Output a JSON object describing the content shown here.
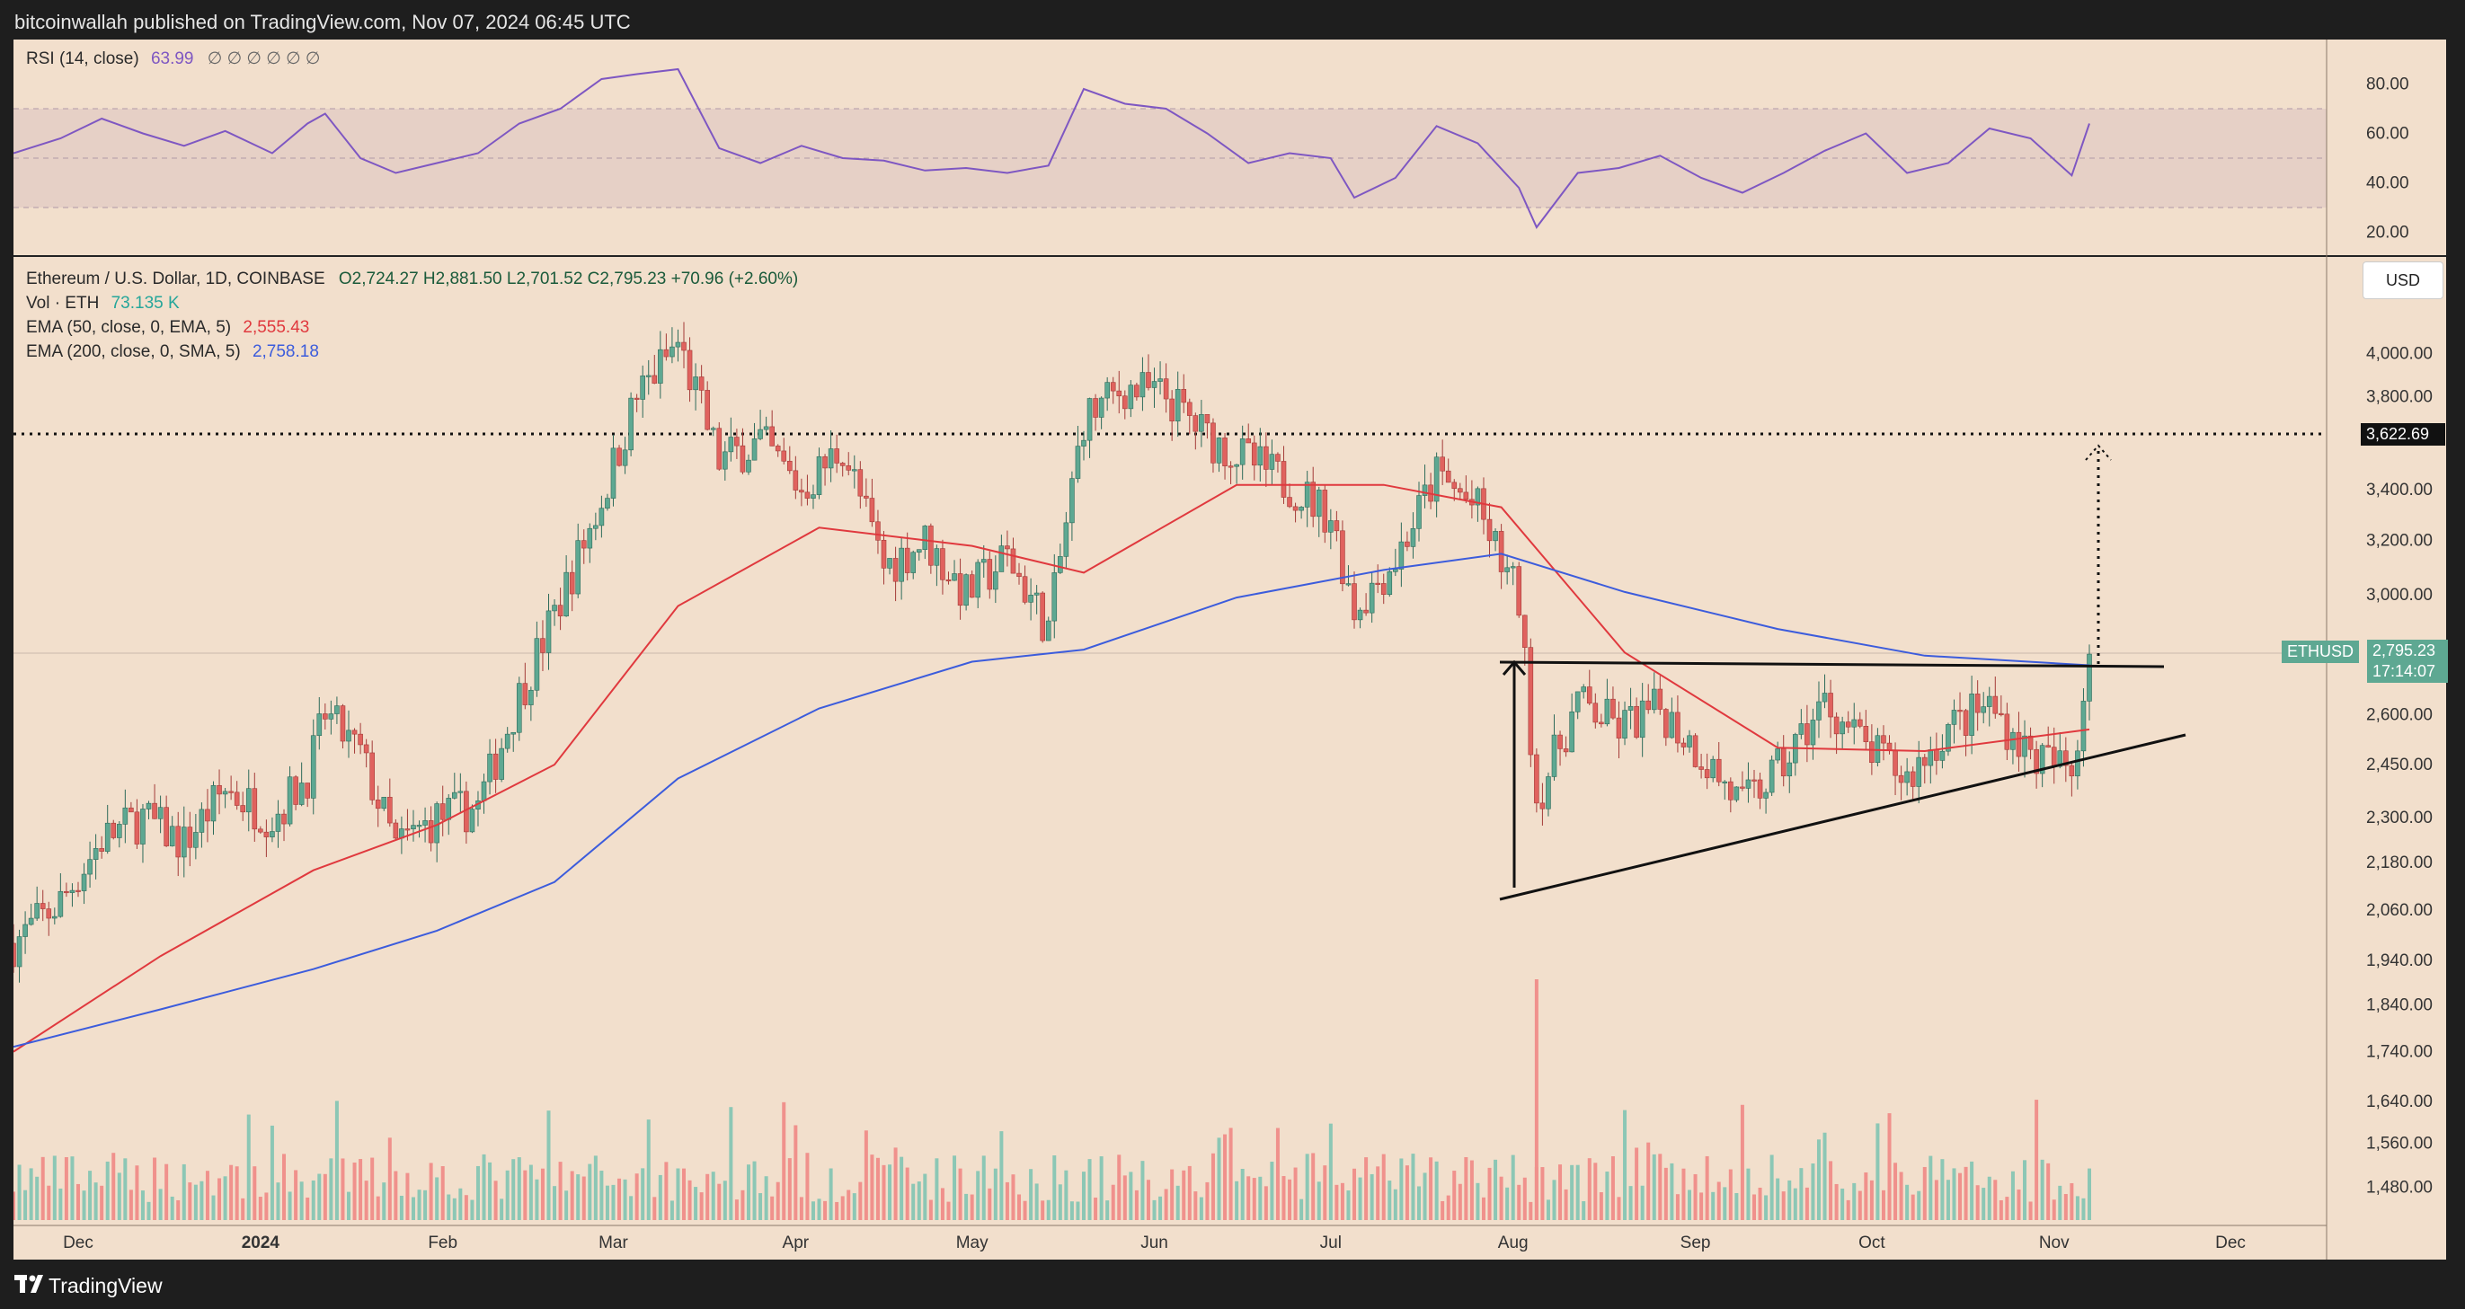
{
  "header": {
    "published_line": "bitcoinwallah published on TradingView.com, Nov 07, 2024 06:45 UTC"
  },
  "footer": {
    "brand": "TradingView"
  },
  "rsi_legend": {
    "label": "RSI (14, close)",
    "value": "63.99",
    "extras": "∅ ∅ ∅ ∅ ∅ ∅"
  },
  "main_legend": {
    "symbol": "Ethereum / U.S. Dollar, 1D, COINBASE",
    "ohlc": "O2,724.27  H2,881.50  L2,701.52  C2,795.23  +70.96 (+2.60%)",
    "vol_label": "Vol · ETH",
    "vol_value": "73.135 K",
    "ema50_label": "EMA (50, close, 0, EMA, 5)",
    "ema50_value": "2,555.43",
    "ema200_label": "EMA (200, close, 0, SMA, 5)",
    "ema200_value": "2,758.18"
  },
  "price_axis": {
    "currency": "USD",
    "symbol_tag": "ETHUSD",
    "price_tag": "2,795.23",
    "countdown_tag": "17:14:07",
    "target_tag": "3,622.69"
  },
  "colors": {
    "up": "#5ea892",
    "down": "#e0625e",
    "ema50": "#e0393e",
    "ema200": "#3c5cdc",
    "rsi": "#7e57c2",
    "background": "#f2dfcc"
  },
  "chart_data": [
    {
      "type": "line",
      "title": "RSI (14, close)",
      "y_ticks": [
        "80.00",
        "60.00",
        "40.00",
        "20.00"
      ],
      "bands": {
        "upper": 70,
        "middle": 50,
        "lower": 30
      },
      "series": [
        {
          "name": "RSI (14, close)",
          "x": [
            "2023-11-20",
            "2023-11-28",
            "2023-12-05",
            "2023-12-12",
            "2023-12-19",
            "2023-12-26",
            "2024-01-03",
            "2024-01-09",
            "2024-01-12",
            "2024-01-18",
            "2024-01-24",
            "2024-01-31",
            "2024-02-07",
            "2024-02-14",
            "2024-02-21",
            "2024-02-28",
            "2024-03-05",
            "2024-03-12",
            "2024-03-19",
            "2024-03-26",
            "2024-04-02",
            "2024-04-09",
            "2024-04-16",
            "2024-04-23",
            "2024-04-30",
            "2024-05-07",
            "2024-05-14",
            "2024-05-20",
            "2024-05-27",
            "2024-06-03",
            "2024-06-10",
            "2024-06-17",
            "2024-06-24",
            "2024-07-01",
            "2024-07-05",
            "2024-07-12",
            "2024-07-19",
            "2024-07-26",
            "2024-08-02",
            "2024-08-05",
            "2024-08-12",
            "2024-08-19",
            "2024-08-26",
            "2024-09-02",
            "2024-09-09",
            "2024-09-16",
            "2024-09-23",
            "2024-09-30",
            "2024-10-07",
            "2024-10-14",
            "2024-10-21",
            "2024-10-28",
            "2024-11-04",
            "2024-11-07"
          ],
          "values": [
            52,
            58,
            66,
            60,
            55,
            61,
            52,
            64,
            68,
            50,
            44,
            48,
            52,
            64,
            70,
            82,
            84,
            86,
            54,
            48,
            55,
            50,
            49,
            45,
            46,
            44,
            47,
            78,
            72,
            70,
            60,
            48,
            52,
            50,
            34,
            42,
            63,
            56,
            38,
            22,
            44,
            46,
            51,
            42,
            36,
            44,
            53,
            60,
            44,
            48,
            62,
            58,
            43,
            64
          ]
        }
      ]
    },
    {
      "type": "candlestick",
      "title": "Ethereum / U.S. Dollar, 1D, COINBASE",
      "x_ticks": [
        "Dec",
        "2024",
        "Feb",
        "Mar",
        "Apr",
        "May",
        "Jun",
        "Jul",
        "Aug",
        "Sep",
        "Oct",
        "Nov",
        "Dec"
      ],
      "y_ticks": [
        "4,000.00",
        "3,800.00",
        "3,400.00",
        "3,200.00",
        "3,000.00",
        "2,600.00",
        "2,450.00",
        "2,300.00",
        "2,180.00",
        "2,060.00",
        "1,940.00",
        "1,840.00",
        "1,740.00",
        "1,640.00",
        "1,560.00",
        "1,480.00"
      ],
      "y_scale": "log",
      "y_range": [
        1440,
        4300
      ],
      "series": [
        {
          "name": "ETHUSD",
          "x": [
            "2023-11-20",
            "2023-11-28",
            "2023-12-05",
            "2023-12-12",
            "2023-12-19",
            "2023-12-26",
            "2024-01-03",
            "2024-01-09",
            "2024-01-12",
            "2024-01-18",
            "2024-01-24",
            "2024-01-31",
            "2024-02-07",
            "2024-02-14",
            "2024-02-21",
            "2024-02-28",
            "2024-03-05",
            "2024-03-12",
            "2024-03-19",
            "2024-03-26",
            "2024-04-02",
            "2024-04-09",
            "2024-04-16",
            "2024-04-23",
            "2024-04-30",
            "2024-05-07",
            "2024-05-14",
            "2024-05-20",
            "2024-05-27",
            "2024-06-03",
            "2024-06-10",
            "2024-06-17",
            "2024-06-24",
            "2024-07-01",
            "2024-07-05",
            "2024-07-12",
            "2024-07-19",
            "2024-07-26",
            "2024-08-02",
            "2024-08-05",
            "2024-08-12",
            "2024-08-19",
            "2024-08-26",
            "2024-09-02",
            "2024-09-09",
            "2024-09-16",
            "2024-09-23",
            "2024-09-30",
            "2024-10-07",
            "2024-10-14",
            "2024-10-21",
            "2024-10-28",
            "2024-11-04",
            "2024-11-07"
          ],
          "values": [
            1980,
            2080,
            2240,
            2300,
            2230,
            2380,
            2300,
            2420,
            2600,
            2480,
            2220,
            2300,
            2330,
            2660,
            2980,
            3360,
            3800,
            4050,
            3520,
            3600,
            3400,
            3580,
            3100,
            3200,
            3000,
            3140,
            2880,
            3700,
            3840,
            3800,
            3620,
            3520,
            3420,
            3300,
            2950,
            3130,
            3460,
            3320,
            2980,
            2350,
            2640,
            2560,
            2620,
            2480,
            2330,
            2450,
            2640,
            2500,
            2410,
            2560,
            2630,
            2480,
            2430,
            2795
          ]
        },
        {
          "name": "EMA (50, close, 0, EMA, 5)",
          "x": [
            "2023-11-20",
            "2023-12-15",
            "2024-01-10",
            "2024-01-31",
            "2024-02-20",
            "2024-03-12",
            "2024-04-05",
            "2024-05-01",
            "2024-05-20",
            "2024-06-15",
            "2024-07-10",
            "2024-07-30",
            "2024-08-20",
            "2024-09-15",
            "2024-10-10",
            "2024-11-07"
          ],
          "values": [
            1740,
            1950,
            2160,
            2280,
            2450,
            2960,
            3250,
            3180,
            3080,
            3420,
            3420,
            3330,
            2800,
            2500,
            2490,
            2555
          ]
        },
        {
          "name": "EMA (200, close, 0, SMA, 5)",
          "x": [
            "2023-11-20",
            "2023-12-15",
            "2024-01-10",
            "2024-01-31",
            "2024-02-20",
            "2024-03-12",
            "2024-04-05",
            "2024-05-01",
            "2024-05-20",
            "2024-06-15",
            "2024-07-10",
            "2024-07-30",
            "2024-08-20",
            "2024-09-15",
            "2024-10-10",
            "2024-11-07"
          ],
          "values": [
            1750,
            1830,
            1920,
            2010,
            2130,
            2410,
            2620,
            2770,
            2810,
            2990,
            3090,
            3150,
            3010,
            2880,
            2790,
            2758
          ]
        }
      ]
    }
  ]
}
